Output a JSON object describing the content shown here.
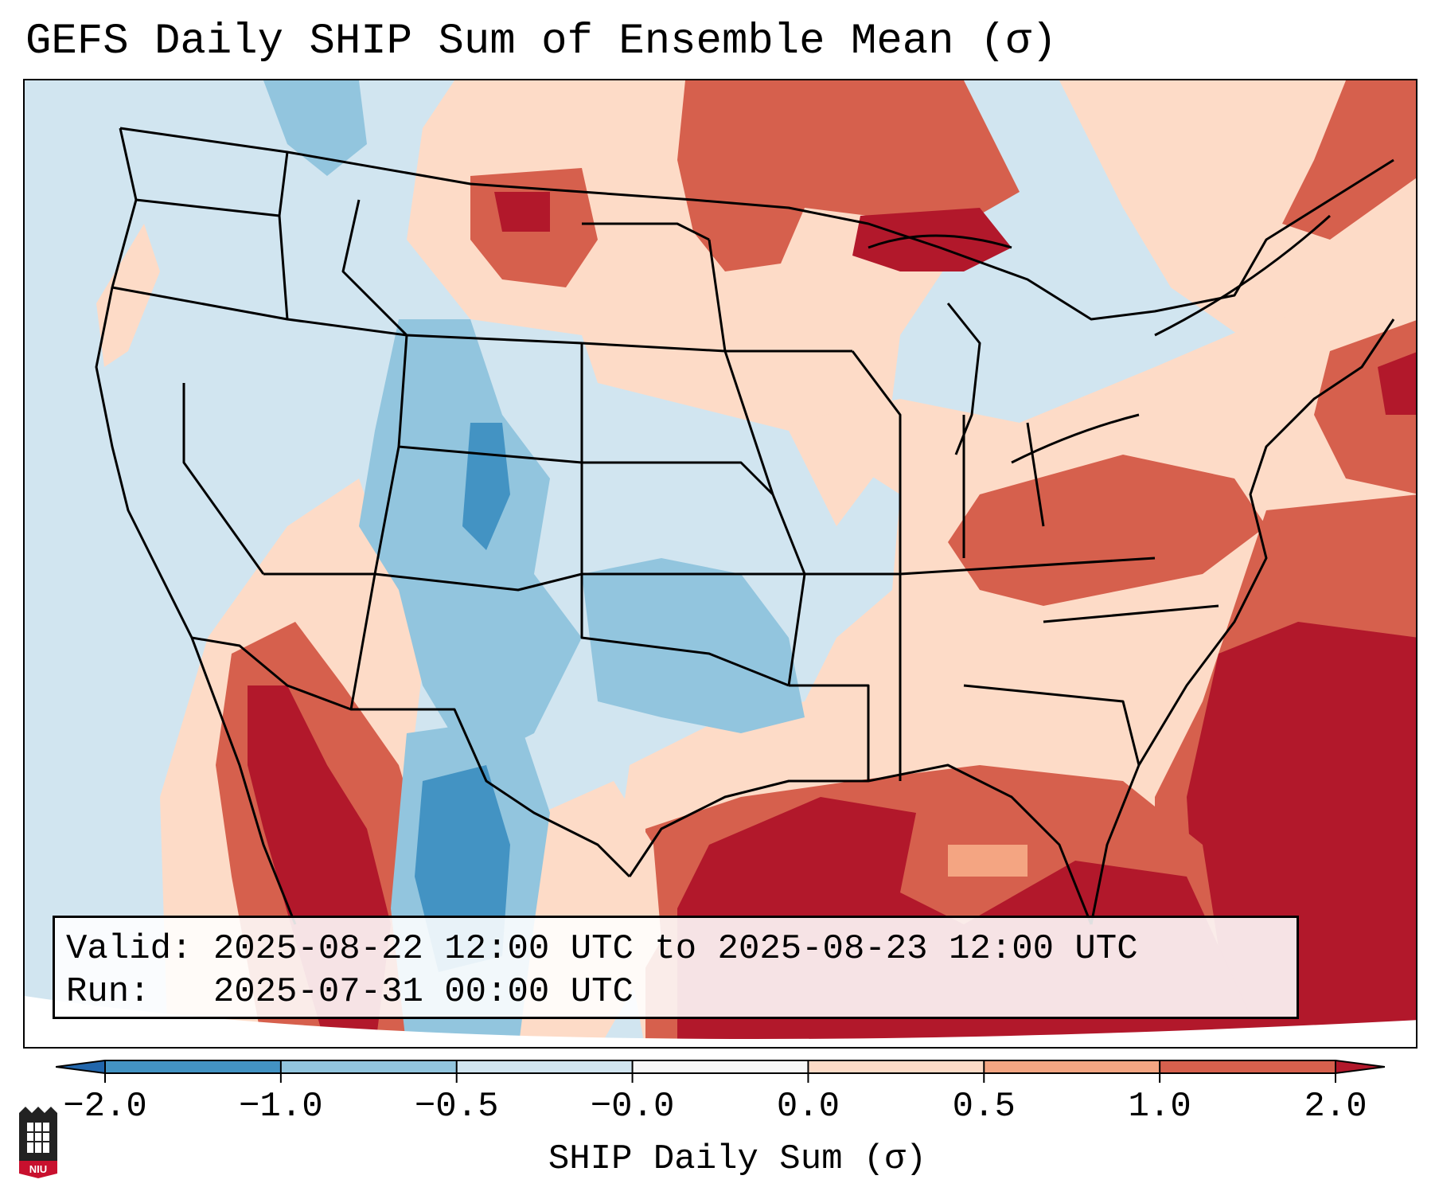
{
  "title": "GEFS Daily SHIP Sum of Ensemble Mean (σ)",
  "info": {
    "valid_line": "Valid: 2025-08-22 12:00 UTC to 2025-08-23 12:00 UTC",
    "run_line": "Run:   2025-07-31 00:00 UTC"
  },
  "colorbar": {
    "label": "SHIP Daily Sum (σ)",
    "tick_labels": [
      "−2.0",
      "−1.0",
      "−0.5",
      "−0.0",
      "0.0",
      "0.5",
      "1.0",
      "2.0"
    ],
    "bins": [
      {
        "from": -2.0,
        "to": -1.0,
        "color": "#4393c3"
      },
      {
        "from": -1.0,
        "to": -0.5,
        "color": "#92c5de"
      },
      {
        "from": -0.5,
        "to": -0.0,
        "color": "#d1e5f0"
      },
      {
        "from": -0.0,
        "to": 0.0,
        "color": "#f7f7f7"
      },
      {
        "from": 0.0,
        "to": 0.5,
        "color": "#fddbc7"
      },
      {
        "from": 0.5,
        "to": 1.0,
        "color": "#f4a582"
      },
      {
        "from": 1.0,
        "to": 2.0,
        "color": "#d6604d"
      }
    ],
    "under_color": "#2166ac",
    "over_color": "#b2182b"
  },
  "colors": {
    "neg_strong": "#4393c3",
    "neg_mid": "#92c5de",
    "neg_weak": "#d1e5f0",
    "pos_weak": "#fddbc7",
    "pos_mid": "#f4a582",
    "pos_strong": "#d6604d",
    "pos_max": "#b2182b"
  },
  "logo": {
    "text": "NIU"
  }
}
